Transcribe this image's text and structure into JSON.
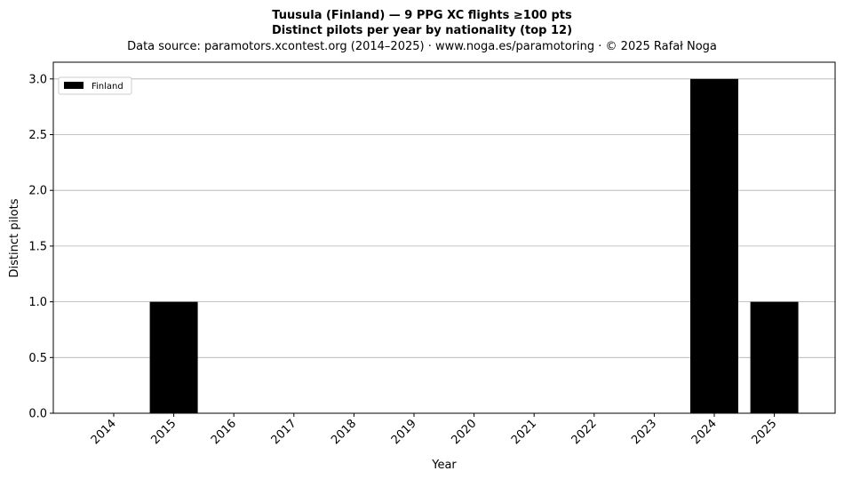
{
  "chart_data": {
    "type": "bar",
    "title": "Tuusula (Finland)  —  9 PPG XC flights ≥100 pts",
    "title2": "Distinct pilots per year by nationality (top 12)",
    "subtitle": "Data source: paramotors.xcontest.org (2014–2025)  ·  www.noga.es/paramotoring  ·  © 2025 Rafał Noga",
    "xlabel": "Year",
    "ylabel": "Distinct pilots",
    "categories": [
      "2014",
      "2015",
      "2016",
      "2017",
      "2018",
      "2019",
      "2020",
      "2021",
      "2022",
      "2023",
      "2024",
      "2025"
    ],
    "series": [
      {
        "name": "Finland",
        "color": "#000000",
        "values": [
          0,
          1,
          0,
          0,
          0,
          0,
          0,
          0,
          0,
          0,
          3,
          1
        ]
      }
    ],
    "ylim": [
      0,
      3.15
    ],
    "yticks": [
      "0.0",
      "0.5",
      "1.0",
      "1.5",
      "2.0",
      "2.5",
      "3.0"
    ],
    "grid": "horizontal",
    "legend": "top-left"
  }
}
